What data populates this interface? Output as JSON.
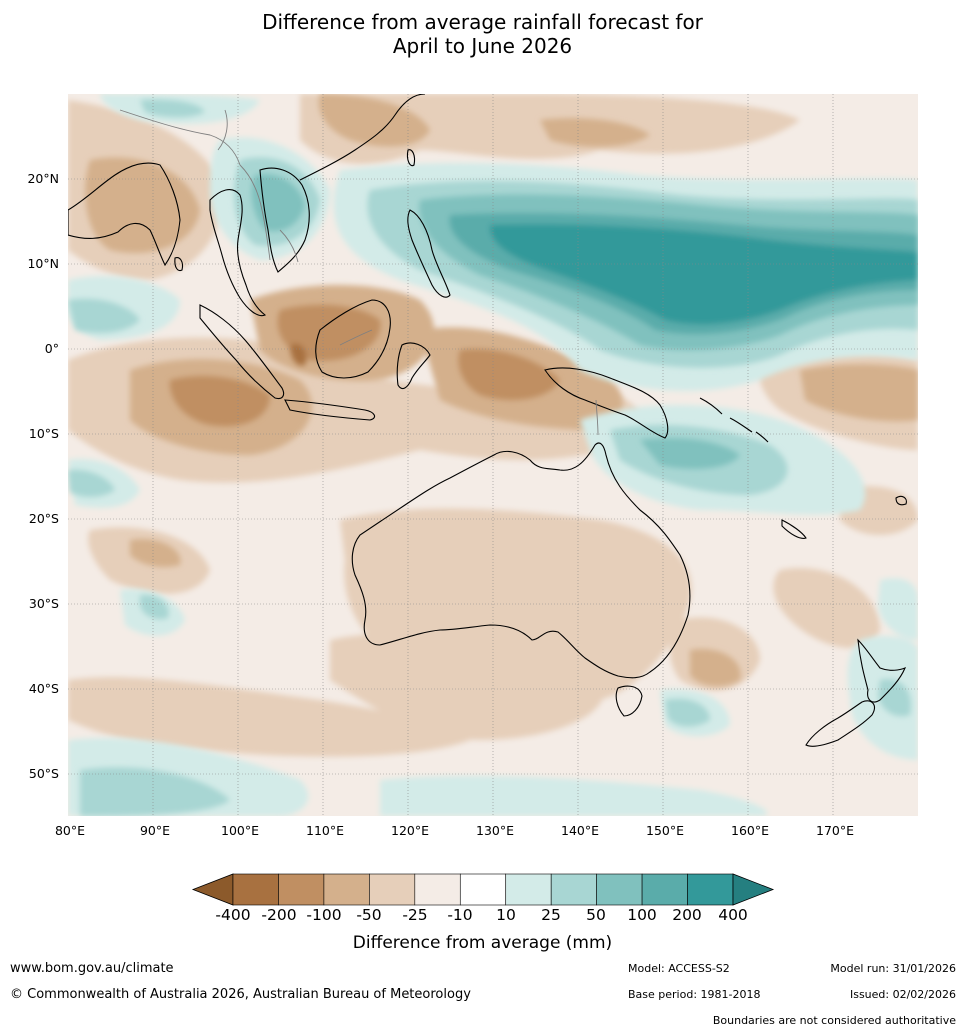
{
  "title": {
    "line1": "Difference from average rainfall forecast for",
    "line2": "April to June 2026"
  },
  "map": {
    "lat_labels": [
      "20°N",
      "10°N",
      "0°",
      "10°S",
      "20°S",
      "30°S",
      "40°S",
      "50°S"
    ],
    "lon_labels": [
      "80°E",
      "90°E",
      "100°E",
      "110°E",
      "120°E",
      "130°E",
      "140°E",
      "150°E",
      "160°E",
      "170°E"
    ],
    "extent": {
      "lon_min": 80,
      "lon_max": 180,
      "lat_min": -55,
      "lat_max": 30
    }
  },
  "legend": {
    "title": "Difference from average (mm)",
    "ticks": [
      "-400",
      "-200",
      "-100",
      "-50",
      "-25",
      "-10",
      "10",
      "25",
      "50",
      "100",
      "200",
      "400"
    ],
    "colors": [
      "#8c5a2b",
      "#a87140",
      "#c08f62",
      "#d4b08c",
      "#e6cfba",
      "#f4ece6",
      "#ffffff",
      "#d3ebe8",
      "#a8d6d3",
      "#80c1be",
      "#5aacaa",
      "#33999a",
      "#257f80"
    ]
  },
  "footer": {
    "website": "www.bom.gov.au/climate",
    "copyright": "© Commonwealth of Australia 2026, Australian Bureau of Meteorology",
    "model": "Model: ACCESS-S2",
    "model_run": "Model run: 31/01/2026",
    "base_period": "Base period: 1981-2018",
    "issued": "Issued: 02/02/2026",
    "disclaimer": "Boundaries are not considered authoritative"
  }
}
